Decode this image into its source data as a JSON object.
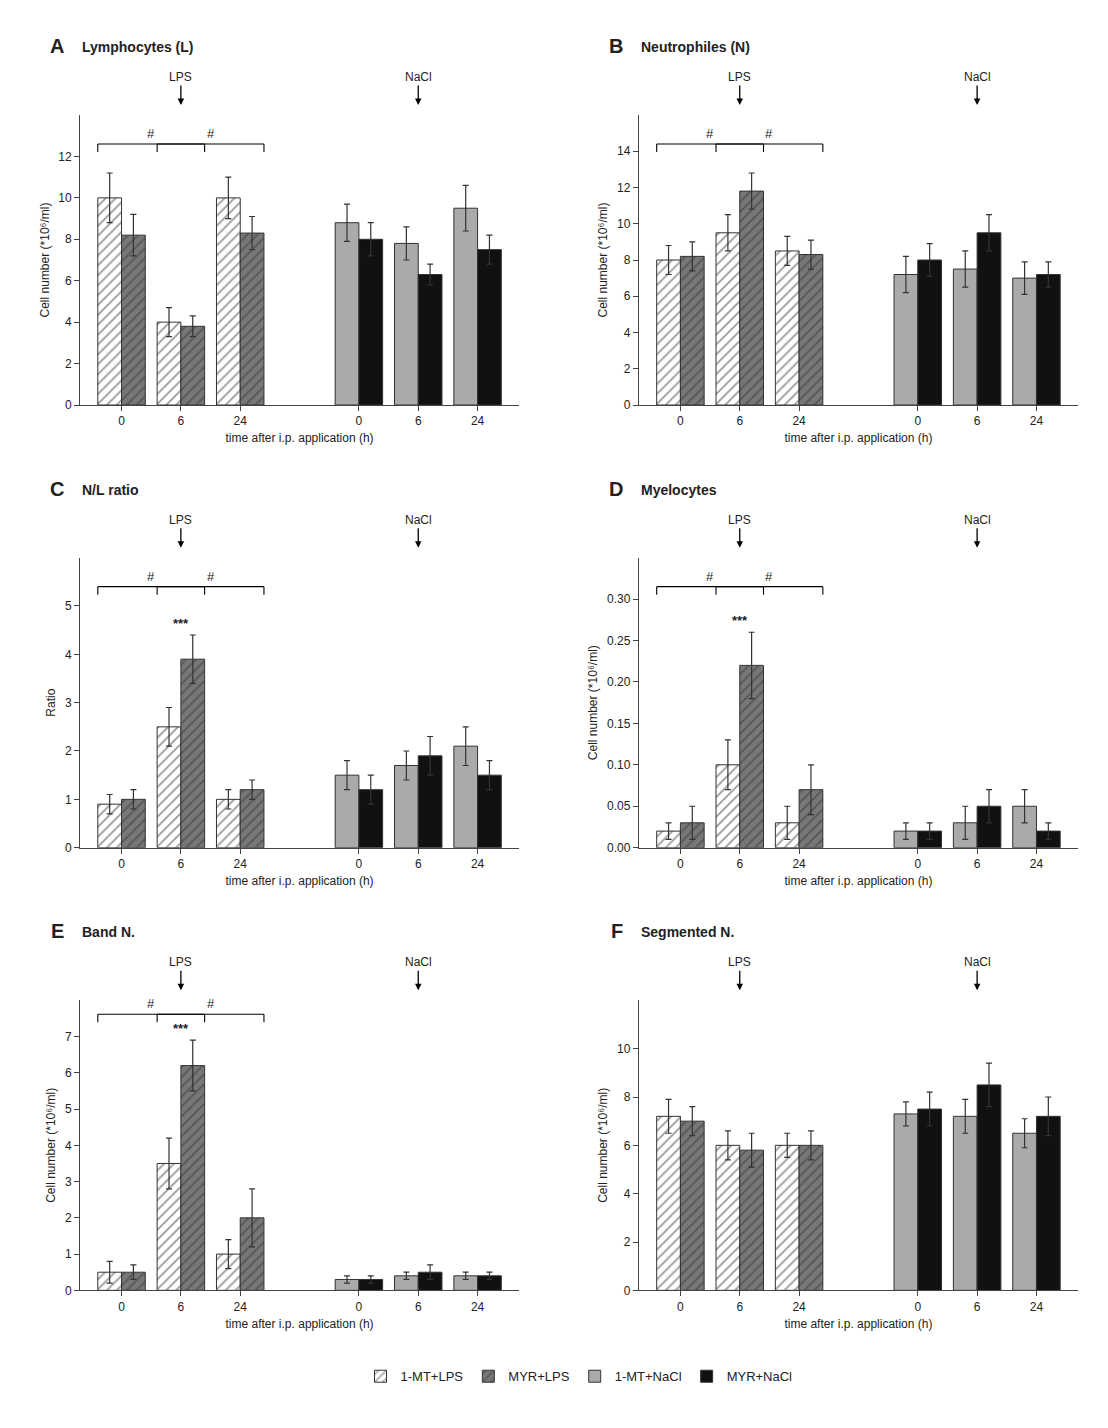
{
  "chart_data": [
    {
      "type": "bar",
      "panel_label": "A",
      "title": "Lymphocytes (L)",
      "xlabel": "time after i.p. application (h)",
      "ylabel": "Cell number (*10⁶/ml)",
      "categories": [
        "0",
        "6",
        "24",
        "0",
        "6",
        "24"
      ],
      "series": [
        {
          "name": "1-MT+LPS",
          "color": "white",
          "marker": "hatch",
          "values": [
            10.0,
            4.0,
            10.0,
            null,
            null,
            null
          ],
          "errors": [
            1.2,
            0.7,
            1.0,
            null,
            null,
            null
          ]
        },
        {
          "name": "MYR+LPS",
          "color": "#777777",
          "marker": "hatch",
          "values": [
            8.2,
            3.8,
            8.3,
            null,
            null,
            null
          ],
          "errors": [
            1.0,
            0.5,
            0.8,
            null,
            null,
            null
          ]
        },
        {
          "name": "1-MT+NaCl",
          "color": "#aaaaaa",
          "marker": "solid",
          "values": [
            null,
            null,
            null,
            8.8,
            7.8,
            9.5
          ],
          "errors": [
            null,
            null,
            null,
            0.9,
            0.8,
            1.1
          ]
        },
        {
          "name": "MYR+NaCl",
          "color": "#111111",
          "marker": "solid",
          "values": [
            null,
            null,
            null,
            8.0,
            6.3,
            7.5
          ],
          "errors": [
            null,
            null,
            null,
            0.8,
            0.5,
            0.7
          ]
        }
      ],
      "group_labels": [
        {
          "text": "LPS",
          "x": 1
        },
        {
          "text": "NaCl",
          "x": 4
        }
      ],
      "brackets": [
        {
          "text": "#",
          "from": 0,
          "to": 1
        },
        {
          "text": "#",
          "from": 1,
          "to": 2
        }
      ],
      "stars": [],
      "ylim": [
        0,
        14
      ],
      "yticks": [
        0,
        2,
        4,
        6,
        8,
        10,
        12
      ],
      "grid": false,
      "legend": "bottom"
    },
    {
      "type": "bar",
      "panel_label": "B",
      "title": "Neutrophiles (N)",
      "xlabel": "time after i.p. application (h)",
      "ylabel": "Cell number (*10⁶/ml)",
      "categories": [
        "0",
        "6",
        "24",
        "0",
        "6",
        "24"
      ],
      "series": [
        {
          "name": "1-MT+LPS",
          "color": "white",
          "marker": "hatch",
          "values": [
            8.0,
            9.5,
            8.5,
            null,
            null,
            null
          ],
          "errors": [
            0.8,
            1.0,
            0.8,
            null,
            null,
            null
          ]
        },
        {
          "name": "MYR+LPS",
          "color": "#777777",
          "marker": "hatch",
          "values": [
            8.2,
            11.8,
            8.3,
            null,
            null,
            null
          ],
          "errors": [
            0.8,
            1.0,
            0.8,
            null,
            null,
            null
          ]
        },
        {
          "name": "1-MT+NaCl",
          "color": "#aaaaaa",
          "marker": "solid",
          "values": [
            null,
            null,
            null,
            7.2,
            7.5,
            7.0
          ],
          "errors": [
            null,
            null,
            null,
            1.0,
            1.0,
            0.9
          ]
        },
        {
          "name": "MYR+NaCl",
          "color": "#111111",
          "marker": "solid",
          "values": [
            null,
            null,
            null,
            8.0,
            9.5,
            7.2
          ],
          "errors": [
            null,
            null,
            null,
            0.9,
            1.0,
            0.7
          ]
        }
      ],
      "group_labels": [
        {
          "text": "LPS",
          "x": 1
        },
        {
          "text": "NaCl",
          "x": 4
        }
      ],
      "brackets": [
        {
          "text": "#",
          "from": 0,
          "to": 1
        },
        {
          "text": "#",
          "from": 1,
          "to": 2
        }
      ],
      "stars": [],
      "ylim": [
        0,
        16
      ],
      "yticks": [
        0,
        2,
        4,
        6,
        8,
        10,
        12,
        14
      ],
      "grid": false,
      "legend": "bottom"
    },
    {
      "type": "bar",
      "panel_label": "C",
      "title": "N/L ratio",
      "xlabel": "time after i.p. application (h)",
      "ylabel": "Ratio",
      "categories": [
        "0",
        "6",
        "24",
        "0",
        "6",
        "24"
      ],
      "series": [
        {
          "name": "1-MT+LPS",
          "color": "white",
          "marker": "hatch",
          "values": [
            0.9,
            2.5,
            1.0,
            null,
            null,
            null
          ],
          "errors": [
            0.2,
            0.4,
            0.2,
            null,
            null,
            null
          ]
        },
        {
          "name": "MYR+LPS",
          "color": "#777777",
          "marker": "hatch",
          "values": [
            1.0,
            3.9,
            1.2,
            null,
            null,
            null
          ],
          "errors": [
            0.2,
            0.5,
            0.2,
            null,
            null,
            null
          ]
        },
        {
          "name": "1-MT+NaCl",
          "color": "#aaaaaa",
          "marker": "solid",
          "values": [
            null,
            null,
            null,
            1.5,
            1.7,
            2.1
          ],
          "errors": [
            null,
            null,
            null,
            0.3,
            0.3,
            0.4
          ]
        },
        {
          "name": "MYR+NaCl",
          "color": "#111111",
          "marker": "solid",
          "values": [
            null,
            null,
            null,
            1.2,
            1.9,
            1.5
          ],
          "errors": [
            null,
            null,
            null,
            0.3,
            0.4,
            0.3
          ]
        }
      ],
      "group_labels": [
        {
          "text": "LPS",
          "x": 1
        },
        {
          "text": "NaCl",
          "x": 4
        }
      ],
      "brackets": [
        {
          "text": "#",
          "from": 0,
          "to": 1
        },
        {
          "text": "#",
          "from": 1,
          "to": 2
        }
      ],
      "stars": [
        {
          "text": "***",
          "x": 1
        }
      ],
      "ylim": [
        0,
        6
      ],
      "yticks": [
        0,
        1,
        2,
        3,
        4,
        5
      ],
      "grid": false,
      "legend": "bottom"
    },
    {
      "type": "bar",
      "panel_label": "D",
      "title": "Myelocytes",
      "xlabel": "time after i.p. application (h)",
      "ylabel": "Cell number (*10⁶/ml)",
      "categories": [
        "0",
        "6",
        "24",
        "0",
        "6",
        "24"
      ],
      "series": [
        {
          "name": "1-MT+LPS",
          "color": "white",
          "marker": "hatch",
          "values": [
            0.02,
            0.1,
            0.03,
            null,
            null,
            null
          ],
          "errors": [
            0.01,
            0.03,
            0.02,
            null,
            null,
            null
          ]
        },
        {
          "name": "MYR+LPS",
          "color": "#777777",
          "marker": "hatch",
          "values": [
            0.03,
            0.22,
            0.07,
            null,
            null,
            null
          ],
          "errors": [
            0.02,
            0.04,
            0.03,
            null,
            null,
            null
          ]
        },
        {
          "name": "1-MT+NaCl",
          "color": "#aaaaaa",
          "marker": "solid",
          "values": [
            null,
            null,
            null,
            0.02,
            0.03,
            0.05
          ],
          "errors": [
            null,
            null,
            null,
            0.01,
            0.02,
            0.02
          ]
        },
        {
          "name": "MYR+NaCl",
          "color": "#111111",
          "marker": "solid",
          "values": [
            null,
            null,
            null,
            0.02,
            0.05,
            0.02
          ],
          "errors": [
            null,
            null,
            null,
            0.01,
            0.02,
            0.01
          ]
        }
      ],
      "group_labels": [
        {
          "text": "LPS",
          "x": 1
        },
        {
          "text": "NaCl",
          "x": 4
        }
      ],
      "brackets": [
        {
          "text": "#",
          "from": 0,
          "to": 1
        },
        {
          "text": "#",
          "from": 1,
          "to": 2
        }
      ],
      "stars": [
        {
          "text": "***",
          "x": 1
        }
      ],
      "ylim": [
        0,
        0.35
      ],
      "yticks": [
        {
          "value": 0,
          "label": "0.00"
        },
        0.05,
        {
          "value": 0.1,
          "label": "0.10"
        },
        0.15,
        {
          "value": 0.2,
          "label": "0.20"
        },
        0.25,
        {
          "value": 0.3,
          "label": "0.30"
        }
      ],
      "grid": false,
      "legend": "bottom"
    },
    {
      "type": "bar",
      "panel_label": "E",
      "title": "Band N.",
      "xlabel": "time after i.p. application (h)",
      "ylabel": "Cell number (*10⁶/ml)",
      "categories": [
        "0",
        "6",
        "24",
        "0",
        "6",
        "24"
      ],
      "series": [
        {
          "name": "1-MT+LPS",
          "color": "white",
          "marker": "hatch",
          "values": [
            0.5,
            3.5,
            1.0,
            null,
            null,
            null
          ],
          "errors": [
            0.3,
            0.7,
            0.4,
            null,
            null,
            null
          ]
        },
        {
          "name": "MYR+LPS",
          "color": "#777777",
          "marker": "hatch",
          "values": [
            0.5,
            6.2,
            2.0,
            null,
            null,
            null
          ],
          "errors": [
            0.2,
            0.7,
            0.8,
            null,
            null,
            null
          ]
        },
        {
          "name": "1-MT+NaCl",
          "color": "#aaaaaa",
          "marker": "solid",
          "values": [
            null,
            null,
            null,
            0.3,
            0.4,
            0.4
          ],
          "errors": [
            null,
            null,
            null,
            0.1,
            0.1,
            0.1
          ]
        },
        {
          "name": "MYR+NaCl",
          "color": "#111111",
          "marker": "solid",
          "values": [
            null,
            null,
            null,
            0.3,
            0.5,
            0.4
          ],
          "errors": [
            null,
            null,
            null,
            0.1,
            0.2,
            0.1
          ]
        }
      ],
      "group_labels": [
        {
          "text": "LPS",
          "x": 1
        },
        {
          "text": "NaCl",
          "x": 4
        }
      ],
      "brackets": [
        {
          "text": "#",
          "from": 0,
          "to": 1
        },
        {
          "text": "#",
          "from": 1,
          "to": 2
        }
      ],
      "stars": [
        {
          "text": "***",
          "x": 1
        }
      ],
      "ylim": [
        0,
        8
      ],
      "yticks": [
        0,
        1,
        2,
        3,
        4,
        5,
        6,
        7
      ],
      "grid": false,
      "legend": "bottom"
    },
    {
      "type": "bar",
      "panel_label": "F",
      "title": "Segmented N.",
      "xlabel": "time after i.p. application (h)",
      "ylabel": "Cell number (*10⁶/ml)",
      "categories": [
        "0",
        "6",
        "24",
        "0",
        "6",
        "24"
      ],
      "series": [
        {
          "name": "1-MT+LPS",
          "color": "white",
          "marker": "hatch",
          "values": [
            7.2,
            6.0,
            6.0,
            null,
            null,
            null
          ],
          "errors": [
            0.7,
            0.6,
            0.5,
            null,
            null,
            null
          ]
        },
        {
          "name": "MYR+LPS",
          "color": "#777777",
          "marker": "hatch",
          "values": [
            7.0,
            5.8,
            6.0,
            null,
            null,
            null
          ],
          "errors": [
            0.6,
            0.7,
            0.6,
            null,
            null,
            null
          ]
        },
        {
          "name": "1-MT+NaCl",
          "color": "#aaaaaa",
          "marker": "solid",
          "values": [
            null,
            null,
            null,
            7.3,
            7.2,
            6.5
          ],
          "errors": [
            null,
            null,
            null,
            0.5,
            0.7,
            0.6
          ]
        },
        {
          "name": "MYR+NaCl",
          "color": "#111111",
          "marker": "solid",
          "values": [
            null,
            null,
            null,
            7.5,
            8.5,
            7.2
          ],
          "errors": [
            null,
            null,
            null,
            0.7,
            0.9,
            0.8
          ]
        }
      ],
      "group_labels": [
        {
          "text": "LPS",
          "x": 1
        },
        {
          "text": "NaCl",
          "x": 4
        }
      ],
      "brackets": [],
      "stars": [],
      "ylim": [
        0,
        12
      ],
      "yticks": [
        0,
        2,
        4,
        6,
        8,
        10
      ],
      "grid": false,
      "legend": "bottom"
    }
  ]
}
